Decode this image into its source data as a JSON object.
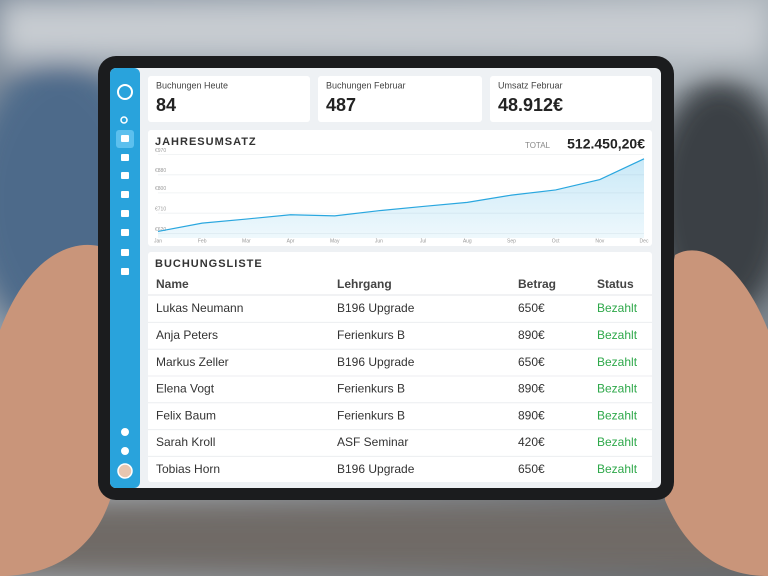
{
  "cards": [
    {
      "label": "Buchungen Heute",
      "value": "84"
    },
    {
      "label": "Buchungen Februar",
      "value": "487"
    },
    {
      "label": "Umsatz Februar",
      "value": "48.912€"
    }
  ],
  "chart": {
    "type": "line",
    "title": "JAHRESUMSATZ",
    "total_label": "TOTAL",
    "total": "512.450,20€",
    "categories": [
      "Jan",
      "Feb",
      "Mar",
      "Apr",
      "May",
      "Jun",
      "Jul",
      "Aug",
      "Sep",
      "Oct",
      "Nov",
      "Dec"
    ],
    "values": [
      629,
      666,
      684,
      703,
      698,
      721,
      740,
      758,
      790,
      813,
      859,
      951
    ],
    "ylim": [
      600,
      990
    ],
    "yticks": [
      {
        "value": 620,
        "label": "€620"
      },
      {
        "value": 710,
        "label": "€710"
      },
      {
        "value": 800,
        "label": "€800"
      },
      {
        "value": 880,
        "label": "€880"
      },
      {
        "value": 970,
        "label": "€970"
      }
    ],
    "color": "#2aa7df",
    "grid": true
  },
  "table": {
    "title": "BUCHUNGSLISTE",
    "columns": [
      "Name",
      "Lehrgang",
      "Betrag",
      "Status"
    ],
    "rows": [
      [
        "Lukas Neumann",
        "B196 Upgrade",
        "650€",
        "Bezahlt"
      ],
      [
        "Anja Peters",
        "Ferienkurs B",
        "890€",
        "Bezahlt"
      ],
      [
        "Markus Zeller",
        "B196 Upgrade",
        "650€",
        "Bezahlt"
      ],
      [
        "Elena Vogt",
        "Ferienkurs B",
        "890€",
        "Bezahlt"
      ],
      [
        "Felix Baum",
        "Ferienkurs B",
        "890€",
        "Bezahlt"
      ],
      [
        "Sarah Kroll",
        "ASF Seminar",
        "420€",
        "Bezahlt"
      ],
      [
        "Tobias Horn",
        "B196 Upgrade",
        "650€",
        "Bezahlt"
      ]
    ]
  }
}
